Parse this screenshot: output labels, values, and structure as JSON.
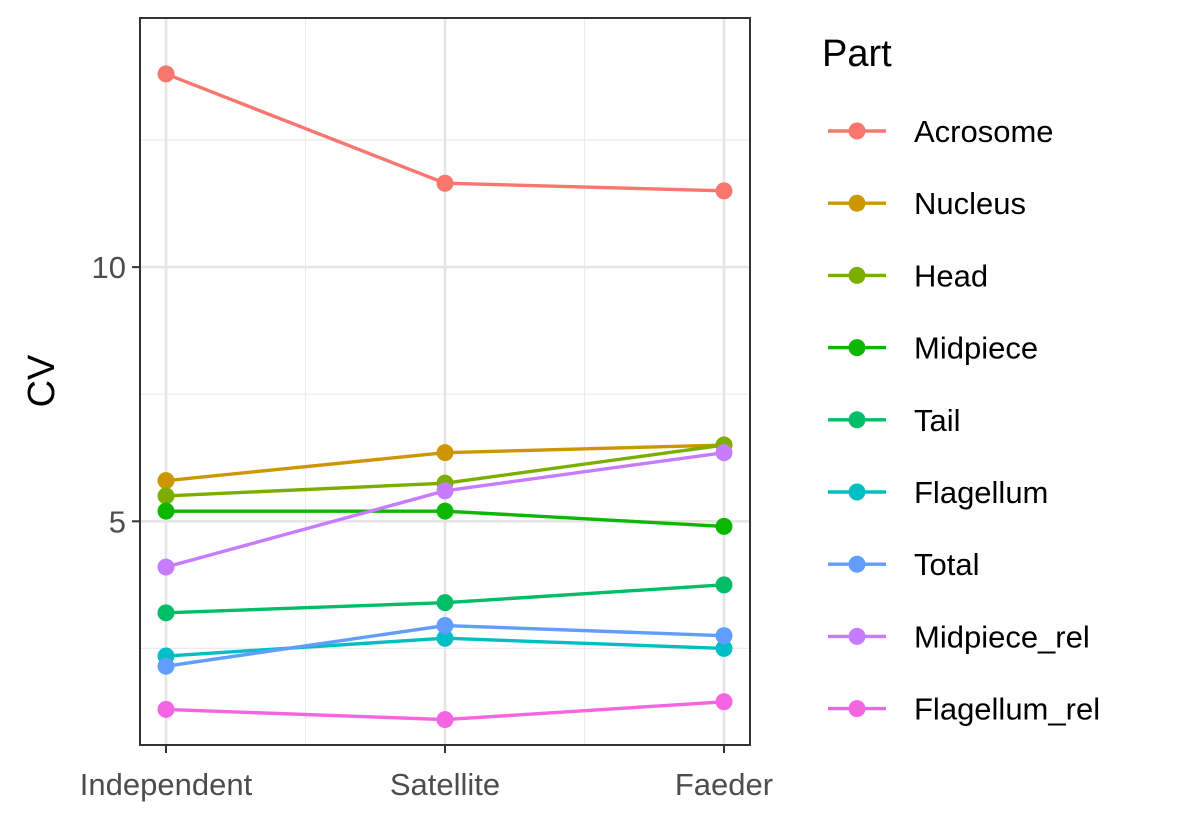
{
  "chart_data": {
    "type": "line",
    "title": "",
    "xlabel": "",
    "ylabel": "CV",
    "categories": [
      "Independent",
      "Satellite",
      "Faeder"
    ],
    "ylim": [
      0.6,
      14.9
    ],
    "yticks": [
      5,
      10
    ],
    "grid": true,
    "legend": {
      "title": "Part",
      "position": "right"
    },
    "series": [
      {
        "name": "Acrosome",
        "color": "#F8766D",
        "values": [
          13.8,
          11.65,
          11.5
        ]
      },
      {
        "name": "Nucleus",
        "color": "#CD9600",
        "values": [
          5.8,
          6.35,
          6.5
        ]
      },
      {
        "name": "Head",
        "color": "#7CAE00",
        "values": [
          5.5,
          5.75,
          6.5
        ]
      },
      {
        "name": "Midpiece",
        "color": "#0CB702",
        "values": [
          5.2,
          5.2,
          4.9
        ],
        "values_note": ""
      },
      {
        "name": "Tail",
        "color": "#00BE67",
        "values": [
          3.2,
          3.4,
          3.75
        ]
      },
      {
        "name": "Flagellum",
        "color": "#00BFC4",
        "values": [
          2.35,
          2.7,
          2.5
        ]
      },
      {
        "name": "Total",
        "color": "#619CFF",
        "values": [
          2.15,
          2.95,
          2.75
        ]
      },
      {
        "name": "Midpiece_rel",
        "color": "#C77CFF",
        "values": [
          4.1,
          5.6,
          6.35
        ]
      },
      {
        "name": "Flagellum_rel",
        "color": "#F564E3",
        "values": [
          1.3,
          1.1,
          1.45
        ]
      }
    ]
  }
}
